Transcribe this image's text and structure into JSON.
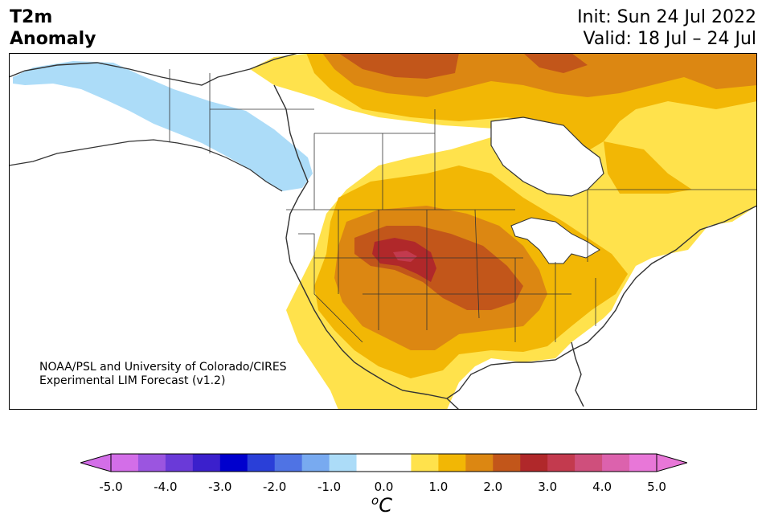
{
  "title": {
    "line1": "T2m",
    "line2": "Anomaly"
  },
  "info": {
    "init": "Init: Sun 24 Jul 2022",
    "valid": "Valid: 18 Jul – 24 Jul"
  },
  "credit": {
    "line1": "NOAA/PSL and University of Colorado/CIRES",
    "line2": "Experimental LIM Forecast (v1.2)"
  },
  "colorbar": {
    "ticks": [
      "-5.0",
      "-4.0",
      "-3.0",
      "-2.0",
      "-1.0",
      "0.0",
      "1.0",
      "2.0",
      "3.0",
      "4.0",
      "5.0"
    ],
    "unit_base": "C",
    "unit_sup": "o",
    "colors": [
      "#d36ee8",
      "#9b55e0",
      "#6a3ad8",
      "#3b20cc",
      "#0000cd",
      "#2a3fd8",
      "#4f73e4",
      "#78aaf0",
      "#acdcf8",
      "#ffffff",
      "#ffffff",
      "#ffe24c",
      "#f2b705",
      "#dc8712",
      "#c2561a",
      "#b0282a",
      "#c33a4e",
      "#cf4f7c",
      "#dc62ad",
      "#e877d8"
    ],
    "extend_min_color": "#d36ee8",
    "extend_max_color": "#e877d8"
  },
  "map_colors": {
    "ocean": "#ffffff",
    "land": "#ffffff",
    "cool1": "#acdcf8",
    "warm1": "#ffe24c",
    "warm2": "#f2b705",
    "warm3": "#dc8712",
    "warm4": "#c2561a",
    "warm5": "#b0282a",
    "warm6": "#c33a4e",
    "coast": "#333333"
  }
}
